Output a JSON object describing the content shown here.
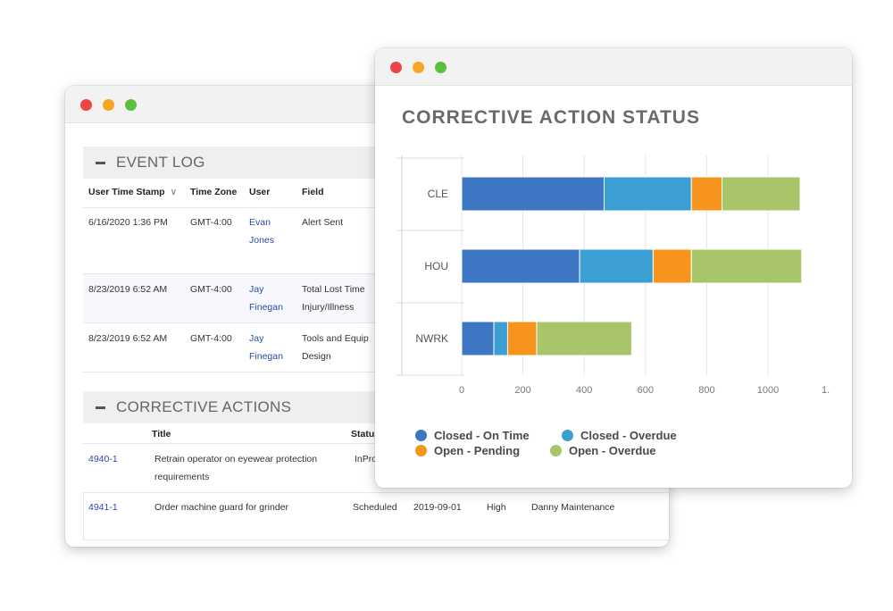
{
  "event_log": {
    "title": "EVENT LOG",
    "columns": [
      "User Time Stamp",
      "Time Zone",
      "User",
      "Field"
    ],
    "sort_indicator": "∨",
    "rows": [
      {
        "timestamp": "6/16/2020 1:36 PM",
        "timezone": "GMT-4:00",
        "user_first": "Evan",
        "user_last": "Jones",
        "field_line1": "Alert Sent",
        "field_line2": ""
      },
      {
        "timestamp": "8/23/2019 6:52 AM",
        "timezone": "GMT-4:00",
        "user_first": "Jay",
        "user_last": "Finegan",
        "field_line1": "Total Lost Time",
        "field_line2": "Injury/Illness"
      },
      {
        "timestamp": "8/23/2019 6:52 AM",
        "timezone": "GMT-4:00",
        "user_first": "Jay",
        "user_last": "Finegan",
        "field_line1": "Tools and Equip",
        "field_line2": "Design"
      }
    ]
  },
  "corrective_actions": {
    "title": "CORRECTIVE ACTIONS",
    "columns": [
      "Title",
      "Status"
    ],
    "rows": [
      {
        "id": "4940-1",
        "title_line1": "Retrain operator on eyewear protection",
        "title_line2": "requirements",
        "status": "InProgress",
        "date": "",
        "priority": "",
        "owner": ""
      },
      {
        "id": "4941-1",
        "title_line1": "Order machine guard for grinder",
        "title_line2": "",
        "status": "Scheduled",
        "date": "2019-09-01",
        "priority": "High",
        "owner": "Danny Maintenance"
      }
    ]
  },
  "chart_data": {
    "type": "bar",
    "orientation": "horizontal",
    "stacked": true,
    "title": "CORRECTIVE ACTION STATUS",
    "categories": [
      "CLE",
      "HOU",
      "NWRK"
    ],
    "series": [
      {
        "name": "Closed - On Time",
        "color": "#3d76c2",
        "values": [
          465,
          385,
          105
        ]
      },
      {
        "name": "Closed - Overdue",
        "color": "#3b9fd3",
        "values": [
          285,
          240,
          45
        ]
      },
      {
        "name": "Open - Pending",
        "color": "#f7941d",
        "values": [
          100,
          125,
          95
        ]
      },
      {
        "name": "Open - Overdue",
        "color": "#a8c56a",
        "values": [
          255,
          360,
          310
        ]
      }
    ],
    "x_ticks": [
      "0",
      "200",
      "400",
      "600",
      "800",
      "1000",
      "1."
    ],
    "xlim": [
      0,
      1200
    ],
    "grid": true,
    "legend_position": "bottom"
  }
}
